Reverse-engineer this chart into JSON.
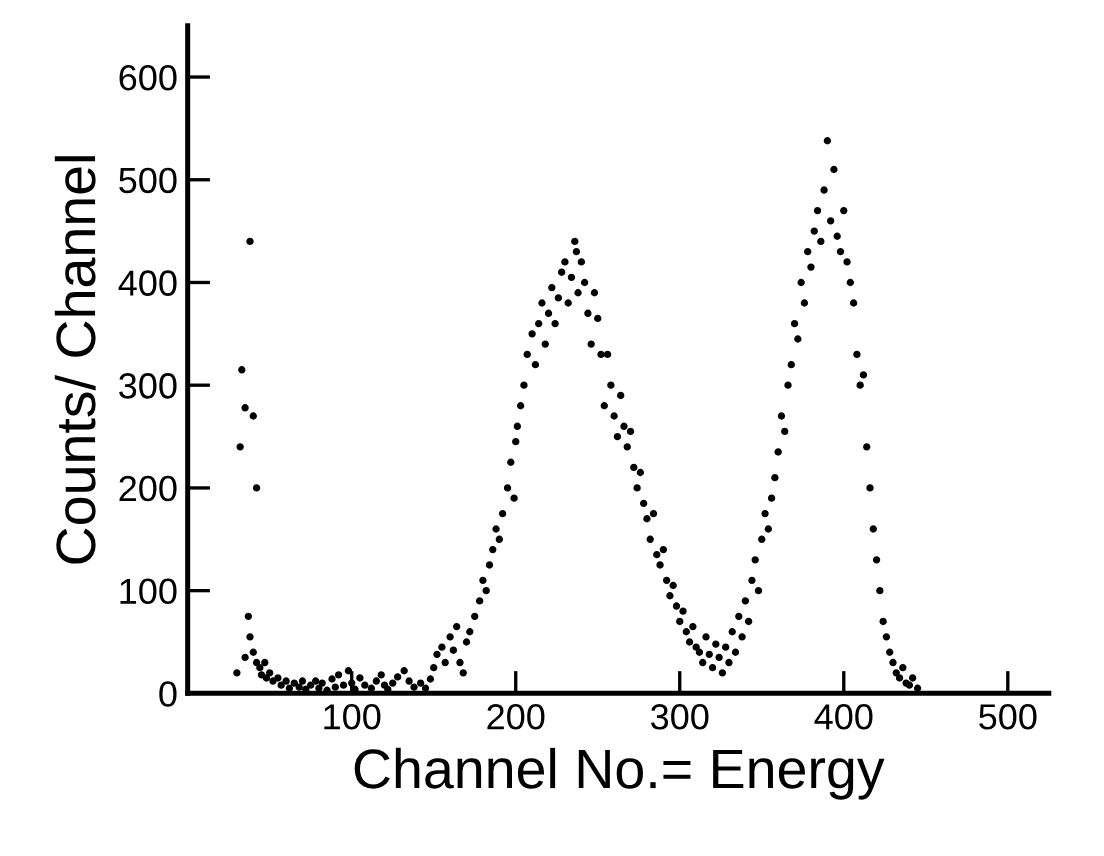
{
  "chart_data": {
    "type": "scatter",
    "xlabel": "Channel No.= Energy",
    "ylabel": "Counts/ Channel",
    "xlim": [
      0,
      525
    ],
    "ylim": [
      0,
      650
    ],
    "xticks": [
      100,
      200,
      300,
      400,
      500
    ],
    "yticks": [
      0,
      100,
      200,
      300,
      400,
      500,
      600
    ],
    "grid": false,
    "marker": "circle",
    "series": [
      {
        "color": "#000000",
        "x": [
          30,
          32,
          33,
          35,
          38,
          40,
          42,
          35,
          37,
          38,
          40,
          42,
          44,
          45,
          47,
          48,
          50,
          52,
          55,
          57,
          60,
          62,
          65,
          68,
          70,
          72,
          75,
          78,
          80,
          82,
          85,
          88,
          90,
          92,
          95,
          98,
          100,
          102,
          105,
          108,
          112,
          115,
          118,
          120,
          122,
          125,
          128,
          132,
          135,
          138,
          142,
          145,
          148,
          150,
          152,
          155,
          157,
          160,
          162,
          164,
          166,
          168,
          170,
          172,
          175,
          178,
          180,
          182,
          184,
          186,
          188,
          190,
          192,
          195,
          197,
          199,
          200,
          201,
          203,
          205,
          207,
          210,
          212,
          214,
          216,
          218,
          220,
          222,
          224,
          226,
          228,
          230,
          232,
          234,
          236,
          237,
          238,
          240,
          242,
          244,
          246,
          248,
          250,
          252,
          254,
          256,
          258,
          260,
          262,
          264,
          266,
          268,
          270,
          272,
          274,
          276,
          278,
          280,
          282,
          284,
          286,
          288,
          290,
          292,
          294,
          296,
          298,
          300,
          302,
          304,
          306,
          308,
          310,
          312,
          314,
          316,
          318,
          320,
          322,
          324,
          326,
          328,
          330,
          332,
          334,
          336,
          338,
          340,
          342,
          344,
          346,
          348,
          350,
          352,
          354,
          356,
          358,
          360,
          362,
          364,
          366,
          368,
          370,
          372,
          374,
          376,
          378,
          380,
          382,
          384,
          386,
          388,
          390,
          392,
          394,
          396,
          398,
          400,
          402,
          404,
          406,
          408,
          410,
          412,
          414,
          416,
          418,
          420,
          422,
          424,
          426,
          428,
          430,
          432,
          434,
          436,
          438,
          440,
          442,
          445
        ],
        "values": [
          20,
          240,
          315,
          278,
          440,
          270,
          200,
          35,
          75,
          55,
          40,
          30,
          25,
          18,
          30,
          15,
          20,
          12,
          15,
          8,
          12,
          5,
          10,
          6,
          12,
          4,
          8,
          12,
          5,
          10,
          3,
          14,
          6,
          18,
          8,
          22,
          10,
          4,
          15,
          8,
          5,
          12,
          18,
          8,
          4,
          10,
          16,
          22,
          12,
          6,
          10,
          5,
          14,
          25,
          38,
          45,
          30,
          55,
          42,
          65,
          30,
          20,
          50,
          60,
          75,
          90,
          110,
          100,
          125,
          140,
          160,
          150,
          175,
          200,
          225,
          190,
          245,
          260,
          280,
          300,
          330,
          350,
          320,
          360,
          380,
          340,
          370,
          395,
          360,
          385,
          410,
          420,
          380,
          405,
          440,
          430,
          390,
          420,
          400,
          370,
          340,
          390,
          365,
          330,
          280,
          330,
          300,
          270,
          250,
          290,
          260,
          240,
          255,
          220,
          200,
          215,
          185,
          170,
          150,
          175,
          135,
          125,
          140,
          110,
          95,
          105,
          85,
          70,
          80,
          60,
          50,
          65,
          45,
          40,
          30,
          55,
          38,
          25,
          48,
          35,
          20,
          45,
          30,
          60,
          40,
          75,
          55,
          90,
          70,
          110,
          130,
          100,
          150,
          175,
          160,
          190,
          210,
          235,
          270,
          255,
          300,
          320,
          360,
          345,
          400,
          380,
          430,
          415,
          450,
          470,
          440,
          490,
          538,
          460,
          510,
          445,
          430,
          470,
          420,
          400,
          380,
          330,
          300,
          310,
          240,
          200,
          160,
          130,
          100,
          70,
          55,
          40,
          30,
          20,
          15,
          25,
          10,
          8,
          15,
          5
        ]
      }
    ]
  }
}
